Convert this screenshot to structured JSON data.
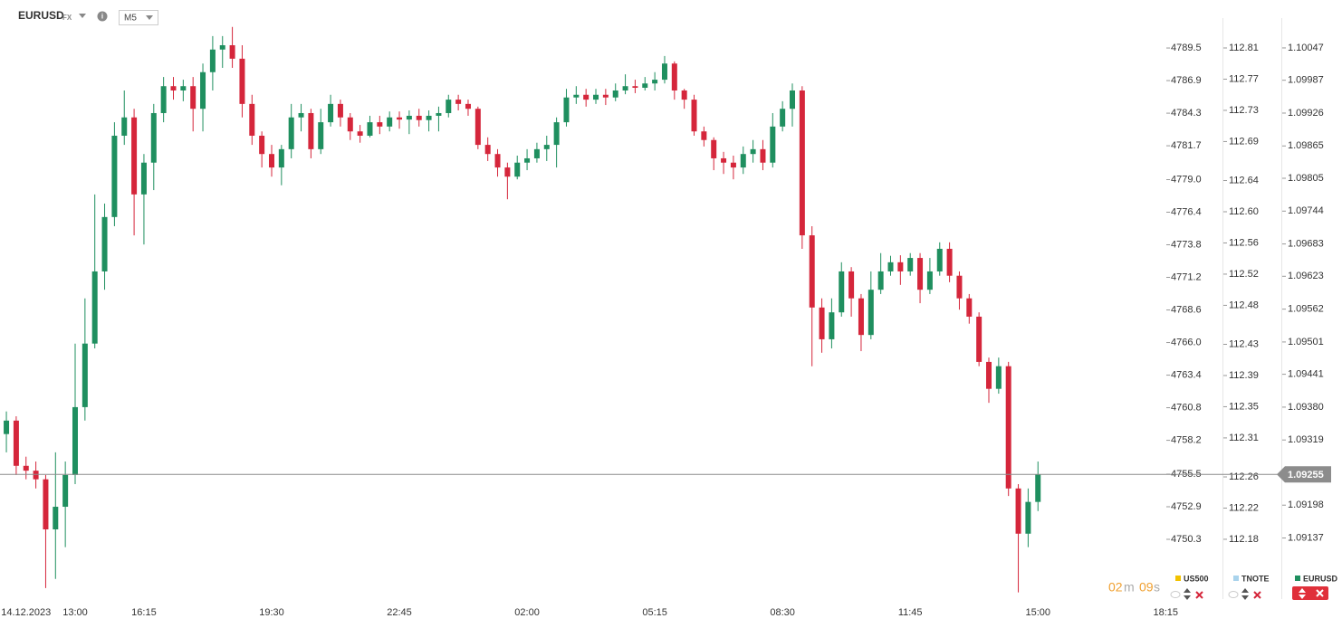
{
  "header": {
    "symbol": "EURUSD",
    "symbol_suffix": "FX",
    "timeframe": "M5"
  },
  "countdown": {
    "minutes": "02",
    "minutes_unit": "m",
    "seconds": "09",
    "seconds_unit": "s"
  },
  "legend": [
    {
      "name": "US500",
      "color": "#f2c200"
    },
    {
      "name": "TNOTE",
      "color": "#a9d3ec"
    },
    {
      "name": "EURUSD",
      "color": "#1f8f5f"
    }
  ],
  "chart_data": {
    "type": "candlestick",
    "up_color": "#1f8f5f",
    "down_color": "#d5263b",
    "open": [
      1.0933,
      1.09355,
      1.09271,
      1.09262,
      1.09246,
      1.09153,
      1.09195,
      1.09254,
      1.0938,
      1.09498,
      1.09632,
      1.09733,
      1.09884,
      1.09918,
      1.09775,
      1.09834,
      1.09926,
      1.09976,
      1.09968,
      1.09976,
      1.09934,
      1.10002,
      1.10044,
      1.10052,
      1.10027,
      1.09943,
      1.09884,
      1.0985,
      1.09825,
      1.09859,
      1.09918,
      1.09926,
      1.09859,
      1.09909,
      1.09943,
      1.09918,
      1.09892,
      1.09884,
      1.09909,
      1.09901,
      1.09918,
      1.09914,
      1.09921,
      1.09913,
      1.09921,
      1.09926,
      1.09951,
      1.09943,
      1.09934,
      1.09867,
      1.0985,
      1.09825,
      1.09808,
      1.09834,
      1.09842,
      1.09859,
      1.09867,
      1.09909,
      1.09955,
      1.0996,
      1.09951,
      1.0996,
      1.09955,
      1.09968,
      1.09976,
      1.09973,
      1.09981,
      1.09988,
      1.10018,
      1.09968,
      1.09951,
      1.09892,
      1.09876,
      1.09842,
      1.09834,
      1.09825,
      1.0985,
      1.09859,
      1.09834,
      1.09901,
      1.09934,
      1.09968,
      1.09699,
      1.09565,
      1.09506,
      1.09556,
      1.09632,
      1.09582,
      1.09514,
      1.09598,
      1.09632,
      1.09649,
      1.09632,
      1.09657,
      1.09598,
      1.09632,
      1.09674,
      1.09624,
      1.09582,
      1.09548,
      1.09464,
      1.09414,
      1.09456,
      1.09229,
      1.09145,
      1.09204
    ],
    "high": [
      1.09372,
      1.09363,
      1.09288,
      1.09279,
      1.09254,
      1.09296,
      1.09279,
      1.09498,
      1.09582,
      1.09775,
      1.09758,
      1.09909,
      1.09968,
      1.09934,
      1.0985,
      1.09943,
      1.09993,
      1.09993,
      1.09988,
      1.09993,
      1.10018,
      1.10069,
      1.10069,
      1.10086,
      1.10052,
      1.0996,
      1.09892,
      1.09867,
      1.09867,
      1.09943,
      1.09943,
      1.09934,
      1.09934,
      1.0996,
      1.09951,
      1.09926,
      1.09904,
      1.09921,
      1.09921,
      1.09929,
      1.09929,
      1.09931,
      1.09934,
      1.09931,
      1.09938,
      1.0996,
      1.0996,
      1.09951,
      1.09938,
      1.09881,
      1.09859,
      1.09834,
      1.09847,
      1.09859,
      1.09871,
      1.09884,
      1.09918,
      1.09971,
      1.09976,
      1.09971,
      1.09971,
      1.09971,
      1.09981,
      1.09998,
      1.09988,
      1.09993,
      1.10002,
      1.10032,
      1.10022,
      1.09971,
      1.0996,
      1.09901,
      1.09881,
      1.09854,
      1.09847,
      1.09864,
      1.09876,
      1.09876,
      1.09926,
      1.09948,
      1.09981,
      1.09976,
      1.09716,
      1.09582,
      1.09582,
      1.09649,
      1.0964,
      1.0959,
      1.09632,
      1.09666,
      1.09661,
      1.09662,
      1.09666,
      1.09666,
      1.09657,
      1.09686,
      1.09686,
      1.09632,
      1.0959,
      1.09556,
      1.09472,
      1.09472,
      1.09464,
      1.09237,
      1.09229,
      1.09279
    ],
    "low": [
      1.09296,
      1.09254,
      1.09246,
      1.09229,
      1.09044,
      1.09061,
      1.0912,
      1.09237,
      1.09355,
      1.09489,
      1.09598,
      1.09716,
      1.09867,
      1.09699,
      1.09682,
      1.09783,
      1.09909,
      1.09951,
      1.09948,
      1.09892,
      1.09892,
      1.09968,
      1.1001,
      1.1001,
      1.09918,
      1.09867,
      1.09825,
      1.09808,
      1.09792,
      1.09842,
      1.09892,
      1.09842,
      1.0985,
      1.09901,
      1.09901,
      1.09876,
      1.09871,
      1.09881,
      1.09887,
      1.09892,
      1.09897,
      1.09887,
      1.09901,
      1.09892,
      1.09892,
      1.09918,
      1.09931,
      1.09921,
      1.09859,
      1.09837,
      1.09808,
      1.09766,
      1.09803,
      1.0982,
      1.09834,
      1.09837,
      1.09825,
      1.09901,
      1.09943,
      1.09938,
      1.09943,
      1.09941,
      1.09948,
      1.09961,
      1.09963,
      1.09968,
      1.09968,
      1.09981,
      1.09951,
      1.09934,
      1.09884,
      1.09864,
      1.0982,
      1.09813,
      1.09803,
      1.09813,
      1.09834,
      1.0982,
      1.09825,
      1.09892,
      1.09901,
      1.09674,
      1.09456,
      1.09481,
      1.09489,
      1.09548,
      1.09548,
      1.09484,
      1.09506,
      1.0959,
      1.09624,
      1.09607,
      1.09624,
      1.09573,
      1.0959,
      1.09624,
      1.09612,
      1.09561,
      1.09535,
      1.09456,
      1.09388,
      1.09405,
      1.09215,
      1.09036,
      1.0912,
      1.09187
    ],
    "close": [
      1.09355,
      1.09271,
      1.09262,
      1.09246,
      1.09153,
      1.09195,
      1.09254,
      1.0938,
      1.09498,
      1.09632,
      1.09733,
      1.09884,
      1.09918,
      1.09775,
      1.09834,
      1.09926,
      1.09976,
      1.09968,
      1.09976,
      1.09934,
      1.10002,
      1.10044,
      1.10052,
      1.10027,
      1.09943,
      1.09884,
      1.0985,
      1.09825,
      1.09859,
      1.09918,
      1.09926,
      1.09859,
      1.09909,
      1.09943,
      1.09918,
      1.09892,
      1.09884,
      1.09909,
      1.09901,
      1.09918,
      1.09914,
      1.09921,
      1.09913,
      1.09921,
      1.09926,
      1.09951,
      1.09943,
      1.09934,
      1.09867,
      1.0985,
      1.09825,
      1.09808,
      1.09834,
      1.09842,
      1.09859,
      1.09867,
      1.09909,
      1.09955,
      1.0996,
      1.09951,
      1.0996,
      1.09955,
      1.09968,
      1.09976,
      1.09973,
      1.09981,
      1.09988,
      1.10018,
      1.09968,
      1.09951,
      1.09892,
      1.09876,
      1.09842,
      1.09834,
      1.09825,
      1.0985,
      1.09859,
      1.09834,
      1.09901,
      1.09934,
      1.09968,
      1.09699,
      1.09565,
      1.09506,
      1.09556,
      1.09632,
      1.09582,
      1.09514,
      1.09598,
      1.09632,
      1.09649,
      1.09632,
      1.09657,
      1.09598,
      1.09632,
      1.09674,
      1.09624,
      1.09582,
      1.09548,
      1.09464,
      1.09414,
      1.09456,
      1.09229,
      1.09145,
      1.09204,
      1.09255
    ],
    "xlim": [
      -0.65,
      118.25
    ],
    "xticks": [
      {
        "value": 2,
        "label": "14.12.2023"
      },
      {
        "value": 7,
        "label": "13:00"
      },
      {
        "value": 14,
        "label": "16:15"
      },
      {
        "value": 27,
        "label": "19:30"
      },
      {
        "value": 40,
        "label": "22:45"
      },
      {
        "value": 53,
        "label": "02:00"
      },
      {
        "value": 66,
        "label": "05:15"
      },
      {
        "value": 79,
        "label": "08:30"
      },
      {
        "value": 92,
        "label": "11:45"
      },
      {
        "value": 105,
        "label": "15:00"
      },
      {
        "value": 118,
        "label": "18:15"
      }
    ],
    "ylim": [
      1.09027,
      1.10136
    ],
    "yticks": [
      1.10047,
      1.09987,
      1.09926,
      1.09865,
      1.09805,
      1.09744,
      1.09683,
      1.09623,
      1.09562,
      1.09501,
      1.09441,
      {
        "value": 1.0938,
        "label": "1.09380"
      },
      1.09319,
      1.09198,
      1.09137
    ],
    "us500_lim": [
      4745.68,
      4793.33
    ],
    "us500_ticks": [
      4789.5,
      4786.9,
      4784.3,
      4781.7,
      {
        "value": 4779,
        "label": "4779.0"
      },
      4776.4,
      4773.8,
      4771.2,
      4768.6,
      {
        "value": 4766,
        "label": "4766.0"
      },
      4763.4,
      4760.8,
      4758.2,
      4755.5,
      4752.9,
      4750.3
    ],
    "tnote_lim": [
      112.1057,
      112.8715
    ],
    "tnote_ticks": [
      112.81,
      112.77,
      112.73,
      112.69,
      112.64,
      {
        "value": 112.6,
        "label": "112.60"
      },
      112.56,
      112.52,
      112.48,
      112.43,
      112.39,
      112.35,
      112.31,
      112.26,
      112.22,
      112.18
    ]
  }
}
